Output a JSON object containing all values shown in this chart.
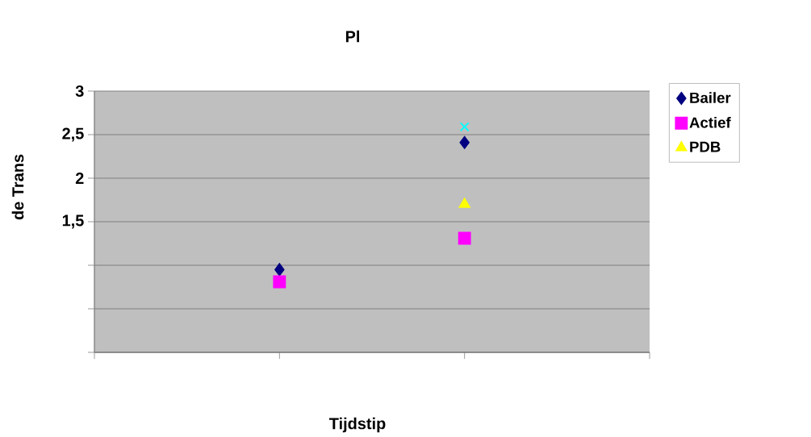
{
  "chart_data": {
    "type": "scatter",
    "title": "Pl",
    "xlabel": "Tijdstip",
    "ylabel": "de Trans",
    "categories": [
      null,
      null,
      null,
      null
    ],
    "ylim": [
      0,
      3
    ],
    "yticks": [
      {
        "value": 0,
        "label": null
      },
      {
        "value": 0.5,
        "label": null
      },
      {
        "value": 1,
        "label": null
      },
      {
        "value": 1.5,
        "label": "1,5"
      },
      {
        "value": 2,
        "label": "2"
      },
      {
        "value": 2.5,
        "label": "2,5"
      },
      {
        "value": 3,
        "label": "3"
      }
    ],
    "grid": "y",
    "legend": "right",
    "series": [
      {
        "name": "Bailer",
        "color": "#000080",
        "marker": "diamond",
        "values": [
          null,
          0.95,
          2.41,
          null
        ]
      },
      {
        "name": "Actief",
        "color": "#ff00ff",
        "marker": "square",
        "values": [
          null,
          0.81,
          1.31,
          null
        ]
      },
      {
        "name": "PDB",
        "color": "#ffff00",
        "marker": "triangle",
        "values": [
          null,
          null,
          1.7,
          null
        ]
      },
      {
        "color": "#00ffff",
        "marker": "cross",
        "values": [
          null,
          null,
          2.59,
          null
        ]
      }
    ]
  }
}
